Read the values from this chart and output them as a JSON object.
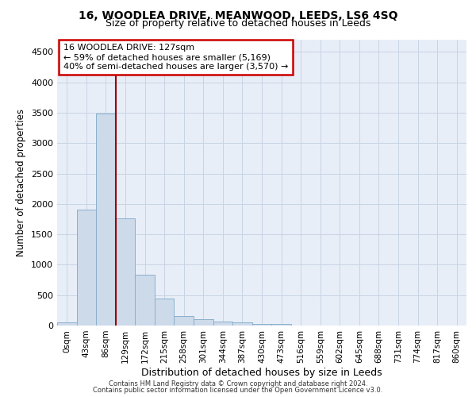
{
  "title": "16, WOODLEA DRIVE, MEANWOOD, LEEDS, LS6 4SQ",
  "subtitle": "Size of property relative to detached houses in Leeds",
  "xlabel": "Distribution of detached houses by size in Leeds",
  "ylabel": "Number of detached properties",
  "bar_labels": [
    "0sqm",
    "43sqm",
    "86sqm",
    "129sqm",
    "172sqm",
    "215sqm",
    "258sqm",
    "301sqm",
    "344sqm",
    "387sqm",
    "430sqm",
    "473sqm",
    "516sqm",
    "559sqm",
    "602sqm",
    "645sqm",
    "688sqm",
    "731sqm",
    "774sqm",
    "817sqm",
    "860sqm"
  ],
  "bar_values": [
    50,
    1900,
    3480,
    1760,
    840,
    450,
    160,
    100,
    60,
    50,
    30,
    30,
    0,
    0,
    0,
    0,
    0,
    0,
    0,
    0,
    0
  ],
  "bar_color": "#cddaea",
  "bar_edge_color": "#8ab0cc",
  "property_line_x": 3.0,
  "property_line_label": "16 WOODLEA DRIVE: 127sqm",
  "annotation_line1": "← 59% of detached houses are smaller (5,169)",
  "annotation_line2": "40% of semi-detached houses are larger (3,570) →",
  "annotation_box_color": "#ffffff",
  "annotation_box_edge": "#cc0000",
  "property_line_color": "#990000",
  "bg_color": "#e8eef8",
  "ylim_max": 4700,
  "yticks": [
    0,
    500,
    1000,
    1500,
    2000,
    2500,
    3000,
    3500,
    4000,
    4500
  ],
  "footer1": "Contains HM Land Registry data © Crown copyright and database right 2024.",
  "footer2": "Contains public sector information licensed under the Open Government Licence v3.0."
}
